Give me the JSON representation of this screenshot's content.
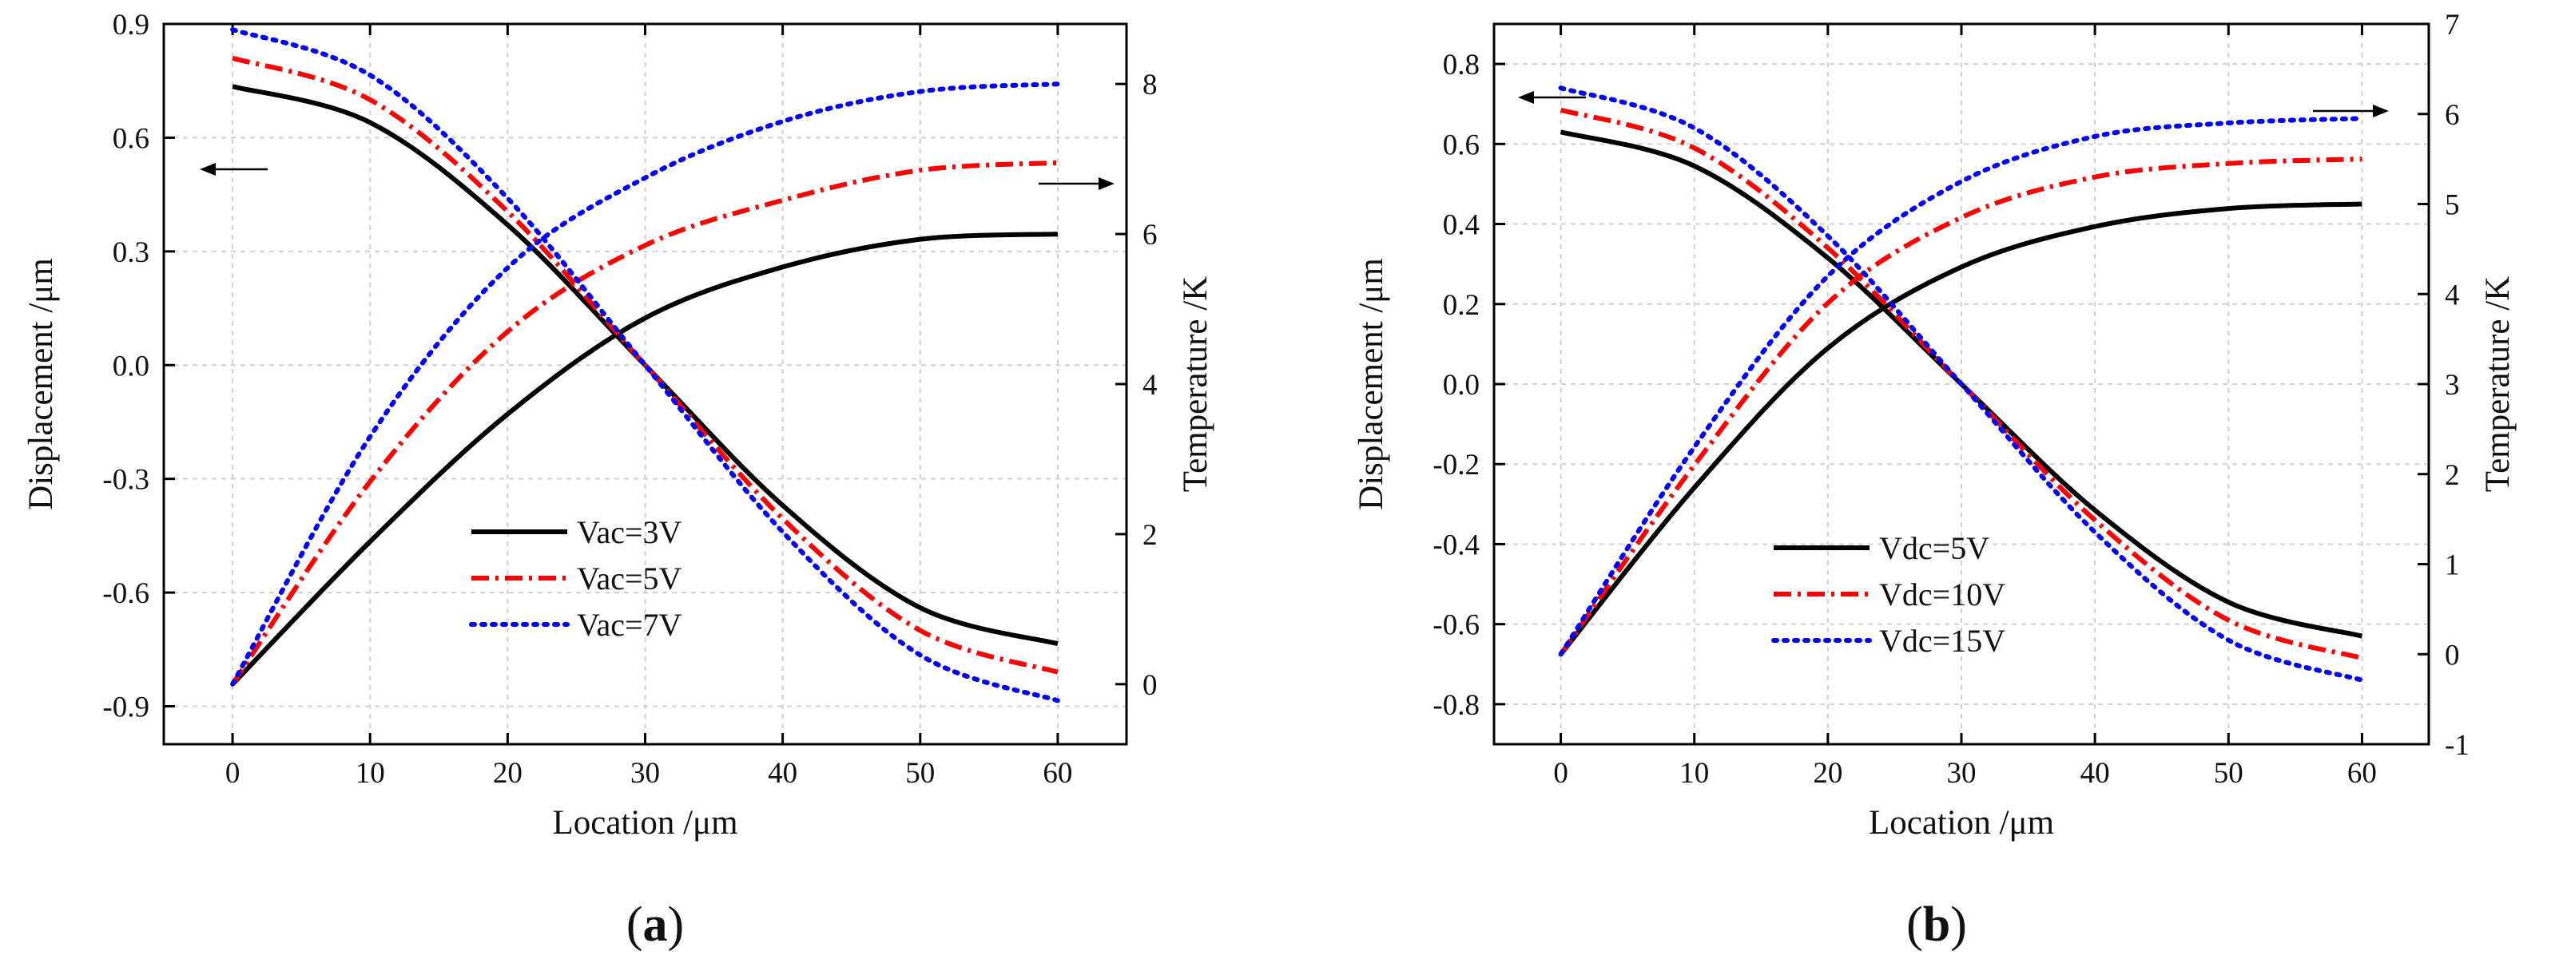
{
  "colors": {
    "series_1": "#000000",
    "series_2": "#ff0000",
    "series_3": "#0000ff",
    "grid": "#d0d0d0"
  },
  "panels": [
    {
      "open": "(",
      "letter": "a",
      "close": ")"
    },
    {
      "open": "(",
      "letter": "b",
      "close": ")"
    }
  ],
  "chart_data": [
    {
      "type": "line",
      "panel": "(a)",
      "xlabel": "Location /μm",
      "ylabel_left": "Displacement /μm",
      "ylabel_right": "Temperature /K",
      "xlim": [
        -5,
        65
      ],
      "ylim_left": [
        -1.0,
        0.9
      ],
      "ylim_right": [
        -0.8,
        8.8
      ],
      "x_ticks": [
        "0",
        "10",
        "20",
        "30",
        "40",
        "50",
        "60"
      ],
      "y_left_ticks": [
        "0.9",
        "0.6",
        "0.3",
        "0.0",
        "-0.3",
        "-0.6",
        "-0.9"
      ],
      "y_right_ticks": [
        "8",
        "6",
        "4",
        "2",
        "0"
      ],
      "grid": true,
      "legend_position": "lower-center",
      "annotations": [
        "arrow pointing left (left axis) near x=0",
        "arrow pointing right (right axis) near x=60"
      ],
      "series": [
        {
          "name": "Vac=3V",
          "style": "solid",
          "color": "#000000",
          "displacement": {
            "x": [
              0,
              10,
              20,
              30,
              40,
              50,
              60
            ],
            "y": [
              0.735,
              0.64,
              0.37,
              0.0,
              -0.37,
              -0.64,
              -0.735
            ]
          },
          "temperature": {
            "x": [
              0,
              10,
              20,
              30,
              40,
              50,
              60
            ],
            "y": [
              0.0,
              1.9,
              3.6,
              4.88,
              5.56,
              5.93,
              6.0
            ]
          }
        },
        {
          "name": "Vac=5V",
          "style": "dash-dot",
          "color": "#ff0000",
          "displacement": {
            "x": [
              0,
              10,
              20,
              30,
              40,
              50,
              60
            ],
            "y": [
              0.81,
              0.7,
              0.405,
              0.0,
              -0.405,
              -0.7,
              -0.81
            ]
          },
          "temperature": {
            "x": [
              0,
              10,
              20,
              30,
              40,
              50,
              60
            ],
            "y": [
              0.0,
              2.7,
              4.7,
              5.85,
              6.45,
              6.85,
              6.95
            ]
          }
        },
        {
          "name": "Vac=7V",
          "style": "dotted",
          "color": "#0000ff",
          "displacement": {
            "x": [
              0,
              10,
              20,
              30,
              40,
              50,
              60
            ],
            "y": [
              0.885,
              0.765,
              0.44,
              0.0,
              -0.44,
              -0.765,
              -0.885
            ]
          },
          "temperature": {
            "x": [
              0,
              10,
              20,
              30,
              40,
              50,
              60
            ],
            "y": [
              0.0,
              3.3,
              5.55,
              6.75,
              7.5,
              7.9,
              8.0
            ]
          }
        }
      ]
    },
    {
      "type": "line",
      "panel": "(b)",
      "xlabel": "Location /μm",
      "ylabel_left": "Displacement /μm",
      "ylabel_right": "Temperature /K",
      "xlim": [
        -5,
        65
      ],
      "ylim_left": [
        -0.9,
        0.9
      ],
      "ylim_right": [
        -1,
        7
      ],
      "x_ticks": [
        "0",
        "10",
        "20",
        "30",
        "40",
        "50",
        "60"
      ],
      "y_left_ticks": [
        "0.8",
        "0.6",
        "0.4",
        "0.2",
        "0.0",
        "-0.2",
        "-0.4",
        "-0.6",
        "-0.8"
      ],
      "y_right_ticks": [
        "7",
        "6",
        "5",
        "4",
        "3",
        "2",
        "1",
        "0",
        "-1"
      ],
      "grid": true,
      "legend_position": "lower-left",
      "annotations": [
        "arrow pointing left (left axis) near x=0",
        "arrow pointing right (right axis) near x=60"
      ],
      "series": [
        {
          "name": "Vdc=5V",
          "style": "solid",
          "color": "#000000",
          "displacement": {
            "x": [
              0,
              10,
              20,
              30,
              40,
              50,
              60
            ],
            "y": [
              0.63,
              0.545,
              0.315,
              0.0,
              -0.315,
              -0.545,
              -0.63
            ]
          },
          "temperature": {
            "x": [
              0,
              10,
              20,
              30,
              40,
              50,
              60
            ],
            "y": [
              0.0,
              1.85,
              3.4,
              4.3,
              4.75,
              4.95,
              5.0
            ]
          }
        },
        {
          "name": "Vdc=10V",
          "style": "dash-dot",
          "color": "#ff0000",
          "displacement": {
            "x": [
              0,
              10,
              20,
              30,
              40,
              50,
              60
            ],
            "y": [
              0.685,
              0.59,
              0.34,
              0.0,
              -0.34,
              -0.59,
              -0.685
            ]
          },
          "temperature": {
            "x": [
              0,
              10,
              20,
              30,
              40,
              50,
              60
            ],
            "y": [
              0.0,
              2.1,
              3.9,
              4.85,
              5.3,
              5.45,
              5.5
            ]
          }
        },
        {
          "name": "Vdc=15V",
          "style": "dotted",
          "color": "#0000ff",
          "displacement": {
            "x": [
              0,
              10,
              20,
              30,
              40,
              50,
              60
            ],
            "y": [
              0.74,
              0.64,
              0.37,
              0.0,
              -0.37,
              -0.64,
              -0.74
            ]
          },
          "temperature": {
            "x": [
              0,
              10,
              20,
              30,
              40,
              50,
              60
            ],
            "y": [
              0.0,
              2.3,
              4.2,
              5.25,
              5.75,
              5.9,
              5.95
            ]
          }
        }
      ]
    }
  ]
}
